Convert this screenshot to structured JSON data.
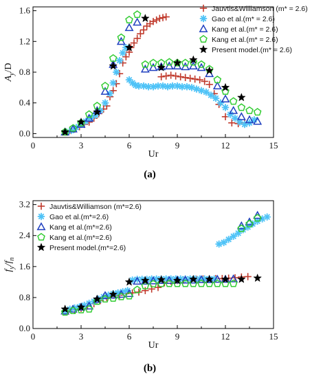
{
  "chart_data": [
    {
      "type": "scatter",
      "panel_label": "(a)",
      "xlabel": "Ur",
      "ylabel": "A",
      "ylabel_sub": "y",
      "ylabel_den": "/D",
      "xlim": [
        0,
        15
      ],
      "ylim": [
        -0.05,
        1.65
      ],
      "xticks": [
        0,
        3,
        6,
        9,
        12,
        15
      ],
      "yticks": [
        0.0,
        0.4,
        0.8,
        1.2,
        1.6
      ],
      "ytick_labels": [
        "0.0",
        "0.4",
        "0.8",
        "1.2",
        "1.6"
      ],
      "legend": "top-right",
      "series": [
        {
          "name": "Jauvtis&Williamson (m* = 2.6)",
          "marker": "plus",
          "color": "#c0392b",
          "x": [
            2.0,
            2.3,
            2.6,
            2.9,
            3.2,
            3.5,
            3.8,
            4.1,
            4.4,
            4.6,
            4.8,
            5.0,
            5.2,
            5.4,
            5.6,
            5.8,
            6.0,
            6.1,
            6.3,
            6.5,
            6.7,
            6.9,
            7.1,
            7.3,
            7.5,
            7.7,
            7.9,
            8.1,
            8.3,
            8.0,
            8.3,
            8.6,
            8.9,
            9.2,
            9.5,
            9.8,
            10.1,
            10.4,
            10.7,
            11.0,
            11.3,
            11.6,
            12.0,
            12.4,
            12.8,
            13.2
          ],
          "y": [
            0.02,
            0.04,
            0.06,
            0.09,
            0.12,
            0.15,
            0.2,
            0.26,
            0.32,
            0.36,
            0.48,
            0.56,
            0.65,
            0.78,
            0.92,
            1.0,
            1.06,
            1.12,
            1.18,
            1.24,
            1.3,
            1.35,
            1.4,
            1.43,
            1.46,
            1.48,
            1.5,
            1.51,
            1.52,
            0.74,
            0.75,
            0.76,
            0.75,
            0.74,
            0.73,
            0.72,
            0.71,
            0.7,
            0.68,
            0.64,
            0.52,
            0.38,
            0.22,
            0.14,
            0.13,
            0.14
          ]
        },
        {
          "name": "Gao et al.(m* = 2.6)",
          "marker": "asterisk",
          "color": "#4fc3f7",
          "x": [
            2.1,
            2.4,
            2.7,
            3.0,
            3.3,
            3.6,
            3.9,
            4.2,
            4.5,
            4.8,
            5.0,
            5.2,
            5.4,
            5.6,
            5.8,
            6.0,
            6.2,
            6.4,
            6.6,
            6.9,
            7.2,
            7.5,
            7.8,
            8.1,
            8.4,
            8.7,
            9.0,
            9.3,
            9.6,
            9.9,
            10.2,
            10.5,
            10.8,
            11.1,
            11.4,
            11.7,
            12.0,
            12.3,
            12.6,
            12.9,
            13.2,
            13.5,
            13.8
          ],
          "y": [
            0.02,
            0.04,
            0.08,
            0.12,
            0.16,
            0.2,
            0.24,
            0.3,
            0.4,
            0.52,
            0.66,
            0.8,
            0.95,
            1.05,
            1.12,
            0.7,
            0.66,
            0.63,
            0.62,
            0.62,
            0.61,
            0.61,
            0.62,
            0.62,
            0.61,
            0.62,
            0.62,
            0.61,
            0.61,
            0.6,
            0.58,
            0.56,
            0.54,
            0.5,
            0.46,
            0.4,
            0.34,
            0.25,
            0.2,
            0.15,
            0.12,
            0.14,
            0.18
          ]
        },
        {
          "name": "Kang et al.(m* = 2.6)",
          "marker": "triangle",
          "color": "#1f3fbf",
          "x": [
            2.0,
            2.5,
            3.0,
            3.5,
            4.0,
            4.5,
            5.0,
            5.5,
            6.0,
            6.5,
            7.0,
            7.5,
            8.0,
            8.5,
            9.0,
            9.5,
            10.0,
            10.5,
            11.0,
            11.5,
            12.0,
            12.5,
            13.0,
            13.5,
            14.0
          ],
          "y": [
            0.02,
            0.06,
            0.12,
            0.2,
            0.3,
            0.55,
            0.9,
            1.2,
            1.38,
            1.45,
            0.84,
            0.86,
            0.87,
            0.88,
            0.88,
            0.87,
            0.88,
            0.86,
            0.78,
            0.62,
            0.45,
            0.3,
            0.22,
            0.18,
            0.16
          ]
        },
        {
          "name": "Kang et al.(m* = 2.6)",
          "marker": "pentagon",
          "color": "#33cc33",
          "x": [
            2.0,
            2.5,
            3.0,
            3.5,
            4.0,
            4.5,
            5.0,
            5.5,
            6.0,
            6.5,
            7.0,
            7.5,
            8.0,
            8.5,
            9.0,
            9.5,
            10.0,
            10.5,
            11.0,
            11.5,
            12.0,
            12.5,
            13.0,
            13.5,
            14.0
          ],
          "y": [
            0.02,
            0.07,
            0.14,
            0.25,
            0.36,
            0.62,
            0.98,
            1.25,
            1.48,
            1.55,
            0.9,
            0.92,
            0.92,
            0.93,
            0.92,
            0.92,
            0.93,
            0.9,
            0.84,
            0.7,
            0.55,
            0.42,
            0.34,
            0.3,
            0.28
          ]
        },
        {
          "name": "Present model.(m* = 2.6)",
          "marker": "star",
          "color": "#000000",
          "x": [
            2.0,
            3.0,
            4.0,
            5.0,
            6.0,
            7.0,
            8.0,
            9.0,
            10.0,
            11.0,
            12.0,
            13.0
          ],
          "y": [
            0.02,
            0.15,
            0.28,
            0.88,
            1.12,
            1.5,
            0.86,
            0.92,
            0.96,
            0.82,
            0.6,
            0.47
          ]
        }
      ]
    },
    {
      "type": "scatter",
      "panel_label": "(b)",
      "xlabel": "Ur",
      "ylabel": "f",
      "ylabel_sub": "y",
      "ylabel_mid": "/f",
      "ylabel_sub2": "n",
      "xlim": [
        0,
        15
      ],
      "ylim": [
        0,
        3.3
      ],
      "xticks": [
        0,
        3,
        6,
        9,
        12,
        15
      ],
      "yticks": [
        0.0,
        0.8,
        1.6,
        2.4,
        3.2
      ],
      "ytick_labels": [
        "0.0",
        "0.8",
        "1.6",
        "2.4",
        "3.2"
      ],
      "legend": "top-left",
      "series": [
        {
          "name": "Jauvtis&Williamson (m*=2.6)",
          "marker": "plus",
          "color": "#c0392b",
          "x": [
            2.2,
            2.6,
            3.0,
            3.4,
            3.8,
            4.2,
            4.6,
            5.0,
            5.4,
            5.8,
            6.2,
            6.6,
            7.0,
            7.4,
            7.8,
            8.2,
            8.6,
            9.0,
            9.4,
            9.8,
            10.2,
            10.6,
            11.0,
            11.4,
            11.8,
            12.2,
            12.6,
            13.0,
            13.4
          ],
          "y": [
            0.45,
            0.48,
            0.52,
            0.58,
            0.64,
            0.72,
            0.8,
            0.86,
            0.86,
            0.9,
            0.92,
            0.94,
            0.98,
            1.02,
            1.06,
            1.18,
            1.22,
            1.24,
            1.25,
            1.26,
            1.27,
            1.28,
            1.28,
            1.29,
            1.29,
            1.3,
            1.31,
            1.33,
            1.34
          ]
        },
        {
          "name": "Gao et al.(m*=2.6)",
          "marker": "asterisk",
          "color": "#4fc3f7",
          "x": [
            2.0,
            2.3,
            2.6,
            2.9,
            3.2,
            3.5,
            3.8,
            4.1,
            4.4,
            4.7,
            5.0,
            5.3,
            5.6,
            5.9,
            6.2,
            6.5,
            6.8,
            7.1,
            7.4,
            7.7,
            8.0,
            8.3,
            8.6,
            8.9,
            9.2,
            9.5,
            9.8,
            10.1,
            10.4,
            10.7,
            11.0,
            11.3,
            11.6,
            11.9,
            12.2,
            12.5,
            12.8,
            13.1,
            13.4,
            13.7,
            14.0,
            14.3,
            14.6
          ],
          "y": [
            0.45,
            0.5,
            0.53,
            0.56,
            0.6,
            0.65,
            0.7,
            0.76,
            0.82,
            0.86,
            0.9,
            0.92,
            0.95,
            0.98,
            1.25,
            1.27,
            1.27,
            1.27,
            1.28,
            1.28,
            1.28,
            1.28,
            1.28,
            1.28,
            1.28,
            1.28,
            1.28,
            1.28,
            1.28,
            1.28,
            1.28,
            1.28,
            2.18,
            2.22,
            2.3,
            2.38,
            2.46,
            2.55,
            2.62,
            2.7,
            2.77,
            2.83,
            2.88
          ]
        },
        {
          "name": "Kang et al.(m*=2.6)",
          "marker": "triangle",
          "color": "#1f3fbf",
          "x": [
            2.0,
            2.5,
            3.0,
            3.5,
            4.0,
            4.5,
            5.0,
            5.5,
            6.0,
            6.5,
            7.0,
            7.5,
            8.0,
            8.5,
            9.0,
            9.5,
            10.0,
            10.5,
            11.0,
            11.5,
            12.0,
            12.5,
            13.0,
            13.5,
            14.0
          ],
          "y": [
            0.45,
            0.5,
            0.55,
            0.58,
            0.75,
            0.85,
            0.86,
            0.88,
            0.9,
            1.22,
            1.22,
            1.23,
            1.24,
            1.24,
            1.25,
            1.25,
            1.25,
            1.26,
            1.26,
            1.27,
            1.27,
            1.28,
            2.65,
            2.75,
            2.92
          ]
        },
        {
          "name": "Kang et al.(m*=2.6)",
          "marker": "pentagon",
          "color": "#33cc33",
          "x": [
            2.0,
            2.5,
            3.0,
            3.5,
            4.0,
            4.5,
            5.0,
            5.5,
            6.0,
            6.5,
            7.0,
            7.5,
            8.0,
            8.5,
            9.0,
            9.5,
            10.0,
            10.5,
            11.0,
            11.5,
            12.0,
            12.5,
            13.0,
            13.5,
            14.0
          ],
          "y": [
            0.42,
            0.46,
            0.48,
            0.5,
            0.7,
            0.76,
            0.78,
            0.82,
            0.84,
            1.0,
            1.1,
            1.15,
            1.16,
            1.16,
            1.16,
            1.16,
            1.16,
            1.16,
            1.16,
            1.16,
            1.16,
            1.16,
            2.58,
            2.7,
            2.85
          ]
        },
        {
          "name": "Present model.(m*=2.6)",
          "marker": "star",
          "color": "#000000",
          "x": [
            2.0,
            3.0,
            4.0,
            5.0,
            6.0,
            7.0,
            8.0,
            9.0,
            10.0,
            11.0,
            12.0,
            13.0,
            14.0
          ],
          "y": [
            0.5,
            0.55,
            0.76,
            0.88,
            1.2,
            1.24,
            1.26,
            1.24,
            1.27,
            1.27,
            1.27,
            1.27,
            1.3
          ]
        }
      ]
    }
  ]
}
